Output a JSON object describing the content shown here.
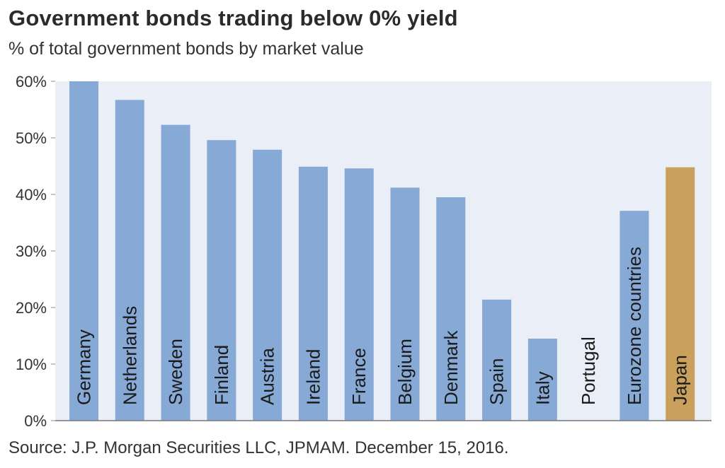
{
  "header": {
    "title": "Government bonds trading below 0% yield",
    "subtitle": "% of total government bonds by market value"
  },
  "footer": {
    "source": "Source: J.P. Morgan Securities LLC, JPMAM. December 15, 2016."
  },
  "chart_data": {
    "type": "bar",
    "title": "Government bonds trading below 0% yield",
    "subtitle": "% of total government bonds by market value",
    "categories": [
      "Germany",
      "Netherlands",
      "Sweden",
      "Finland",
      "Austria",
      "Ireland",
      "France",
      "Belgium",
      "Denmark",
      "Spain",
      "Italy",
      "Portugal",
      "Eurozone countries",
      "Japan"
    ],
    "values": [
      60,
      56.7,
      52.3,
      49.6,
      47.9,
      44.9,
      44.6,
      41.2,
      39.5,
      21.4,
      14.5,
      0,
      37.1,
      44.8
    ],
    "colors": [
      "#87a9d6",
      "#87a9d6",
      "#87a9d6",
      "#87a9d6",
      "#87a9d6",
      "#87a9d6",
      "#87a9d6",
      "#87a9d6",
      "#87a9d6",
      "#87a9d6",
      "#87a9d6",
      "#87a9d6",
      "#87a9d6",
      "#c9a15c"
    ],
    "ylim": [
      0,
      60
    ],
    "yticks": [
      "0%",
      "10%",
      "20%",
      "30%",
      "40%",
      "50%",
      "60%"
    ],
    "ytick_values": [
      0,
      10,
      20,
      30,
      40,
      50,
      60
    ],
    "xlabel": "",
    "ylabel": "",
    "grid": false,
    "plot_background": "#e9eef7"
  }
}
